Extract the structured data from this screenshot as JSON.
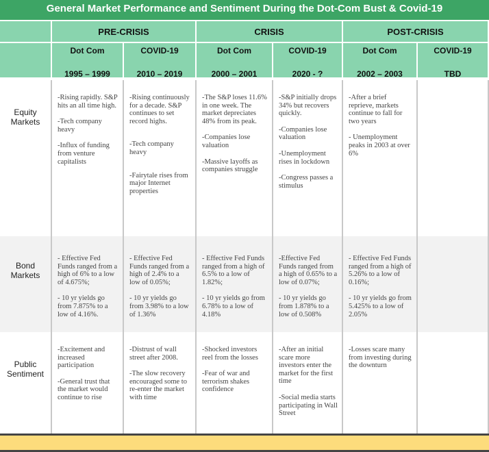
{
  "title": "General Market Performance and Sentiment During the Dot-Com Bust & Covid-19",
  "colors": {
    "title_bar": "#3da565",
    "header": "#89d4ae",
    "footer": "#fddc7c",
    "bond_row": "#f2f2f2"
  },
  "groups": [
    "PRE-CRISIS",
    "CRISIS",
    "POST-CRISIS"
  ],
  "columns": [
    {
      "name": "Dot Com",
      "years": "1995 – 1999"
    },
    {
      "name": "COVID-19",
      "years": "2010 – 2019"
    },
    {
      "name": "Dot Com",
      "years": "2000 – 2001"
    },
    {
      "name": "COVID-19",
      "years": "2020 - ?"
    },
    {
      "name": "Dot Com",
      "years": "2002 – 2003"
    },
    {
      "name": "COVID-19",
      "years": "TBD"
    }
  ],
  "rows": [
    {
      "label": "Equity Markets",
      "cells": [
        [
          "-Rising rapidly. S&P hits an all time high.",
          "-Tech company heavy",
          "-Influx of funding from venture capitalists"
        ],
        [
          "-Rising continuously for a decade. S&P continues to set record highs.",
          "-Tech company heavy",
          "-Fairytale rises from major Internet properties"
        ],
        [
          "-The S&P loses 11.6% in one week. The market depreciates 48% from its peak.",
          "-Companies lose valuation",
          "-Massive layoffs as companies struggle"
        ],
        [
          "-S&P initially drops 34% but recovers quickly.",
          "-Companies lose valuation",
          "-Unemployment rises in lockdown",
          "-Congress passes a stimulus"
        ],
        [
          "-After a brief reprieve, markets continue to fall for two years",
          "- Unemployment peaks in 2003 at over 6%"
        ],
        []
      ]
    },
    {
      "label": "Bond Markets",
      "cells": [
        [
          "- Effective Fed Funds ranged from a high of 6% to a low of 4.675%;",
          "- 10 yr yields go from 7.875% to a low of 4.16%."
        ],
        [
          "- Effective Fed Funds ranged from a high of 2.4% to a low of 0.05%;",
          "- 10 yr yields go from 3.98% to a low of 1.36%"
        ],
        [
          "- Effective Fed Funds ranged from a high of 6.5% to a low of 1.82%;",
          "- 10 yr yields go from 6.78% to a low of 4.18%"
        ],
        [
          "-Effective Fed Funds ranged from a high of 0.65% to a low of 0.07%;",
          "- 10 yr yields go from 1.878% to a low of 0.508%"
        ],
        [
          "- Effective Fed Funds ranged from a high of 5.26% to a low of  0.16%;",
          "- 10 yr yields go from 5.425% to a low of 2.05%"
        ],
        []
      ]
    },
    {
      "label": "Public Sentiment",
      "cells": [
        [
          "-Excitement and increased participation",
          "-General trust that the market would continue to rise"
        ],
        [
          "-Distrust of wall street after 2008.",
          "-The slow recovery encouraged some to re-enter the market with time"
        ],
        [
          "-Shocked investors reel from the losses",
          "-Fear of war and terrorism shakes confidence"
        ],
        [
          "-After an initial scare more investors enter the market for the first time",
          "-Social media starts participating in Wall Street"
        ],
        [
          "-Losses scare many from investing during the downturn"
        ],
        []
      ]
    }
  ]
}
